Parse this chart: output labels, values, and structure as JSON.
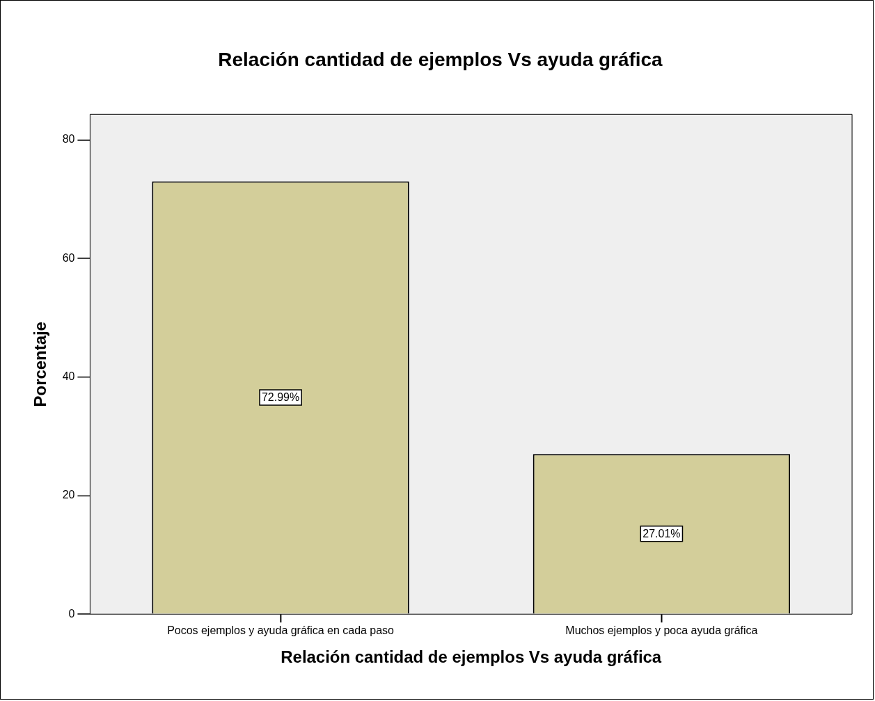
{
  "chart_data": {
    "type": "bar",
    "title": "Relación cantidad de ejemplos Vs ayuda gráfica",
    "xlabel": "Relación cantidad de ejemplos Vs ayuda gráfica",
    "ylabel": "Porcentaje",
    "categories": [
      "Pocos ejemplos y ayuda gráfica en cada paso",
      "Muchos ejemplos y poca ayuda gráfica"
    ],
    "values": [
      72.99,
      27.01
    ],
    "value_labels": [
      "72.99%",
      "27.01%"
    ],
    "color": "#d3ce9a",
    "ylim": [
      0,
      84.3
    ],
    "yticks": [
      0,
      20,
      40,
      60,
      80
    ],
    "grid": false,
    "legend": false
  }
}
